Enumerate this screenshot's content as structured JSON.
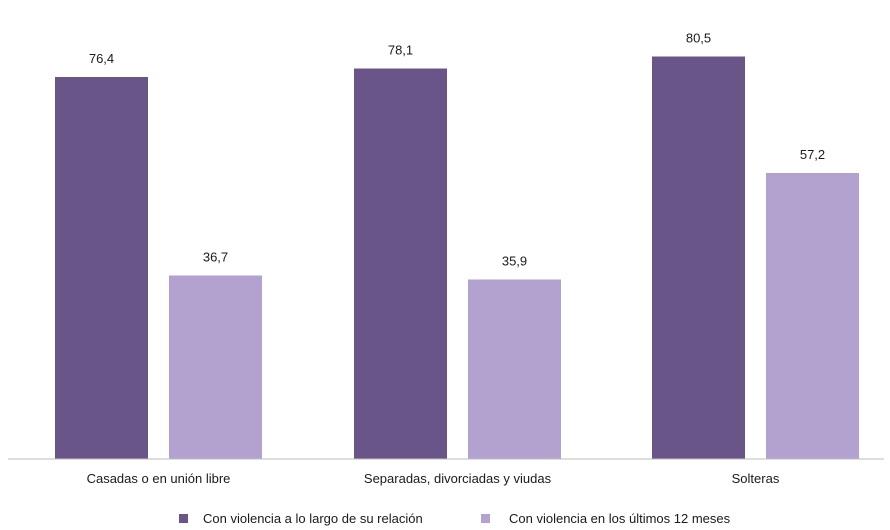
{
  "chart_data": {
    "type": "bar",
    "categories": [
      "Casadas o en unión libre",
      "Separadas, divorciadas y viudas",
      "Solteras"
    ],
    "series": [
      {
        "name": "Con violencia a lo largo de su relación",
        "values": [
          76.4,
          78.1,
          80.5
        ],
        "labels": [
          "76,4",
          "78,1",
          "80,5"
        ],
        "color": "#6a5589"
      },
      {
        "name": "Con violencia en los últimos 12 meses",
        "values": [
          36.7,
          35.9,
          57.2
        ],
        "labels": [
          "36,7",
          "35,9",
          "57,2"
        ],
        "color": "#b3a2cf"
      }
    ],
    "ylim": [
      0,
      85
    ],
    "grid": false,
    "legend_position": "bottom"
  }
}
